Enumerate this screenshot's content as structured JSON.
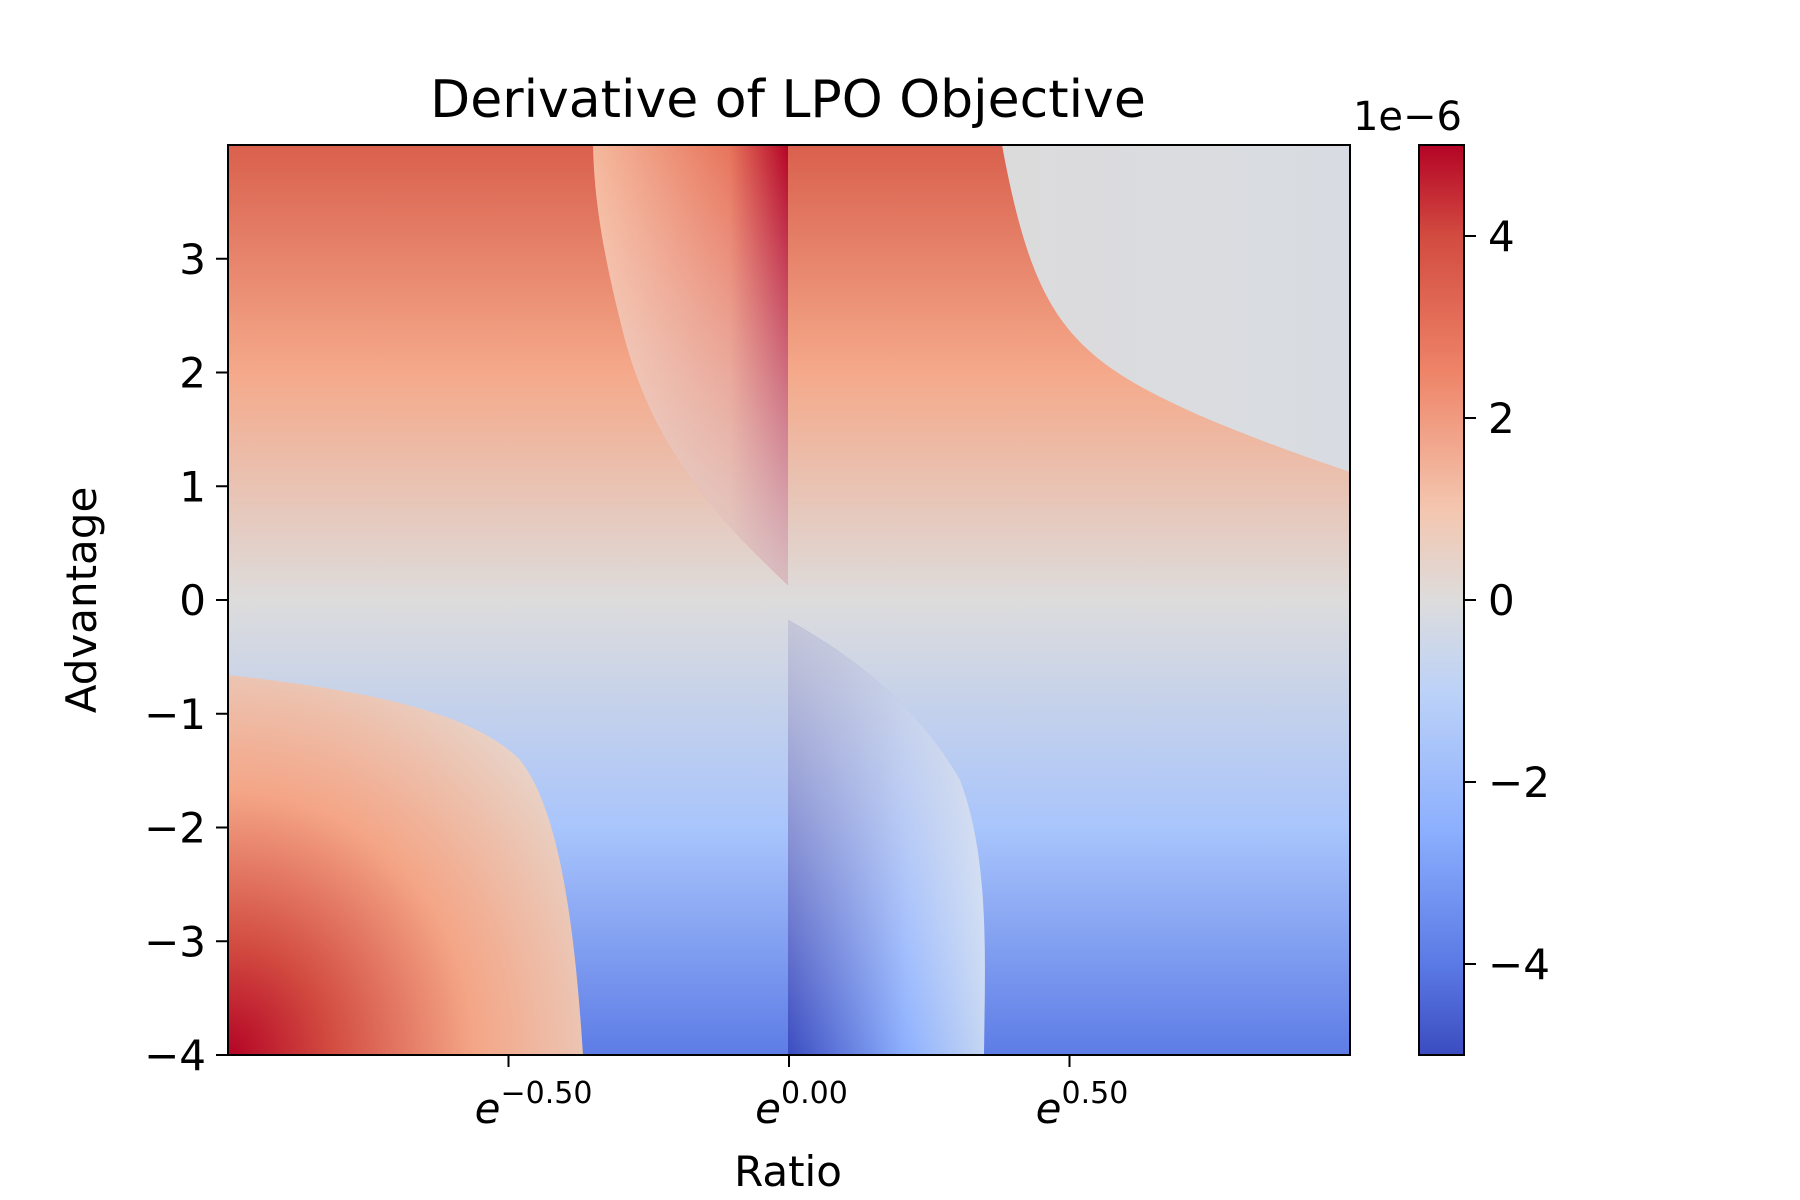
{
  "chart_data": {
    "type": "heatmap",
    "title": "Derivative of LPO Objective",
    "xlabel": "Ratio",
    "ylabel": "Advantage",
    "x_scale": "log",
    "x_ticks": [
      {
        "base": "e",
        "exponent": "−0.50",
        "value": -0.5
      },
      {
        "base": "e",
        "exponent": "0.00",
        "value": 0.0
      },
      {
        "base": "e",
        "exponent": "0.50",
        "value": 0.5
      }
    ],
    "xlim_log": [
      -1.0,
      1.0
    ],
    "y_ticks": [
      {
        "label": "3",
        "value": 3
      },
      {
        "label": "2",
        "value": 2
      },
      {
        "label": "1",
        "value": 1
      },
      {
        "label": "0",
        "value": 0
      },
      {
        "label": "−1",
        "value": -1
      },
      {
        "label": "−2",
        "value": -2
      },
      {
        "label": "−3",
        "value": -3
      },
      {
        "label": "−4",
        "value": -4
      }
    ],
    "ylim": [
      -4,
      4
    ],
    "colormap": "coolwarm",
    "colorbar": {
      "offset_label": "1e−6",
      "range": [
        -5,
        5
      ],
      "ticks": [
        {
          "label": "4",
          "value": 4
        },
        {
          "label": "2",
          "value": 2
        },
        {
          "label": "0",
          "value": 0
        },
        {
          "label": "−2",
          "value": -2
        },
        {
          "label": "−4",
          "value": -4
        }
      ]
    },
    "grid": false,
    "regions": {
      "upper_band_boundary_log_ratio": -0.35,
      "upper_right_boundary": "hyperbola from (0.38, 4) to (1.0, 1.1)",
      "lower_left_boundary": "hyperbola from (-1.0, -0.65) to (-0.37, -4)",
      "lower_band_boundary_log_ratio": 0.35
    }
  }
}
